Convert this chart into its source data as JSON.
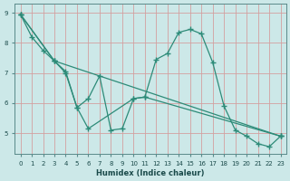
{
  "xlabel": "Humidex (Indice chaleur)",
  "line_color": "#2d8b78",
  "bg_color": "#cce8e8",
  "grid_color": "#d4a0a0",
  "xlim": [
    -0.5,
    23.5
  ],
  "ylim": [
    4.3,
    9.3
  ],
  "xticks": [
    0,
    1,
    2,
    3,
    4,
    5,
    6,
    7,
    8,
    9,
    10,
    11,
    12,
    13,
    14,
    15,
    16,
    17,
    18,
    19,
    20,
    21,
    22,
    23
  ],
  "yticks": [
    5,
    6,
    7,
    8,
    9
  ],
  "series": [
    {
      "x": [
        0,
        1,
        2,
        3,
        4,
        5,
        6,
        7,
        8,
        9,
        10,
        11,
        12,
        13,
        14,
        15,
        16,
        17,
        18,
        19,
        20,
        21,
        22,
        23
      ],
      "y": [
        8.95,
        8.2,
        7.75,
        7.4,
        7.05,
        5.85,
        6.15,
        6.9,
        5.1,
        5.15,
        6.15,
        6.2,
        7.45,
        7.65,
        8.35,
        8.45,
        8.3,
        7.35,
        5.9,
        5.1,
        4.9,
        4.65,
        4.55,
        4.9
      ]
    },
    {
      "x": [
        0,
        3,
        4,
        5,
        6,
        10,
        11,
        23
      ],
      "y": [
        8.95,
        7.4,
        7.0,
        5.85,
        5.15,
        6.15,
        6.2,
        4.9
      ]
    },
    {
      "x": [
        0,
        3,
        23
      ],
      "y": [
        8.95,
        7.4,
        4.9
      ]
    }
  ]
}
